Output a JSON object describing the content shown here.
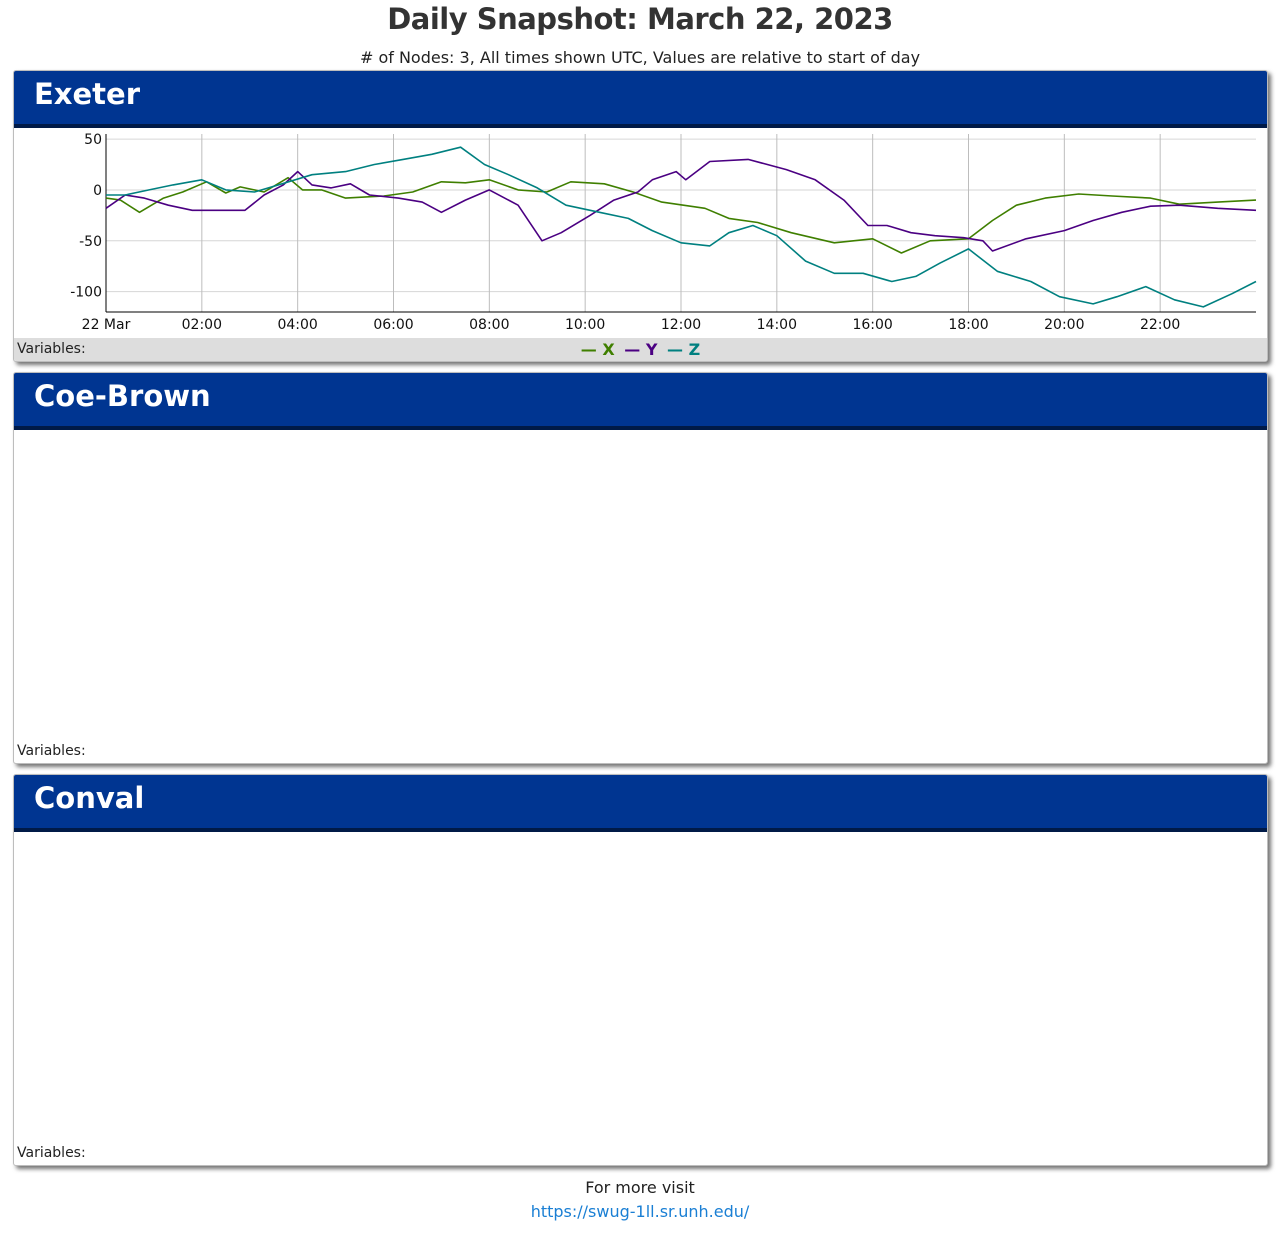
{
  "page": {
    "title": "Daily Snapshot: March 22, 2023",
    "subtitle": "# of Nodes: 3, All times shown UTC, Values are relative to start of day"
  },
  "panels": [
    {
      "name": "Exeter",
      "variables_label": "Variables:"
    },
    {
      "name": "Coe-Brown",
      "variables_label": "Variables:"
    },
    {
      "name": "Conval",
      "variables_label": "Variables:"
    }
  ],
  "legend": [
    {
      "label": "X",
      "color": "#3f7f00"
    },
    {
      "label": "Y",
      "color": "#4b0082"
    },
    {
      "label": "Z",
      "color": "#008080"
    }
  ],
  "footer": {
    "text": "For more visit",
    "link": "https://swug-1ll.sr.unh.edu/"
  },
  "chart_data": {
    "type": "line",
    "x_unit": "hours UTC",
    "xlim": [
      0,
      24
    ],
    "ylim": [
      -120,
      55
    ],
    "y_ticks": [
      50,
      0,
      -50,
      -100
    ],
    "x_ticks": [
      {
        "hour": 0,
        "label": "22 Mar"
      },
      {
        "hour": 2,
        "label": "02:00"
      },
      {
        "hour": 4,
        "label": "04:00"
      },
      {
        "hour": 6,
        "label": "06:00"
      },
      {
        "hour": 8,
        "label": "08:00"
      },
      {
        "hour": 10,
        "label": "10:00"
      },
      {
        "hour": 12,
        "label": "12:00"
      },
      {
        "hour": 14,
        "label": "14:00"
      },
      {
        "hour": 16,
        "label": "16:00"
      },
      {
        "hour": 18,
        "label": "18:00"
      },
      {
        "hour": 20,
        "label": "20:00"
      },
      {
        "hour": 22,
        "label": "22:00"
      }
    ],
    "grid": true,
    "series": [
      {
        "name": "X",
        "color": "#3f7f00",
        "points": [
          [
            0,
            -8
          ],
          [
            0.3,
            -10
          ],
          [
            0.7,
            -22
          ],
          [
            1.2,
            -8
          ],
          [
            1.6,
            -2
          ],
          [
            2.1,
            8
          ],
          [
            2.5,
            -3
          ],
          [
            2.8,
            3
          ],
          [
            3.3,
            -2
          ],
          [
            3.8,
            12
          ],
          [
            4.1,
            0
          ],
          [
            4.5,
            0
          ],
          [
            5,
            -8
          ],
          [
            5.8,
            -6
          ],
          [
            6.4,
            -2
          ],
          [
            7,
            8
          ],
          [
            7.5,
            7
          ],
          [
            8,
            10
          ],
          [
            8.6,
            0
          ],
          [
            9.2,
            -2
          ],
          [
            9.7,
            8
          ],
          [
            10.4,
            6
          ],
          [
            11,
            -2
          ],
          [
            11.6,
            -12
          ],
          [
            12.5,
            -18
          ],
          [
            13,
            -28
          ],
          [
            13.6,
            -32
          ],
          [
            14.3,
            -42
          ],
          [
            15.2,
            -52
          ],
          [
            16,
            -48
          ],
          [
            16.6,
            -62
          ],
          [
            17.2,
            -50
          ],
          [
            18,
            -48
          ],
          [
            18.5,
            -30
          ],
          [
            19,
            -15
          ],
          [
            19.6,
            -8
          ],
          [
            20.3,
            -4
          ],
          [
            21,
            -6
          ],
          [
            21.8,
            -8
          ],
          [
            22.4,
            -14
          ],
          [
            23.2,
            -12
          ],
          [
            24,
            -10
          ]
        ]
      },
      {
        "name": "Y",
        "color": "#4b0082",
        "points": [
          [
            0,
            -18
          ],
          [
            0.4,
            -5
          ],
          [
            0.8,
            -8
          ],
          [
            1.3,
            -15
          ],
          [
            1.8,
            -20
          ],
          [
            2.4,
            -20
          ],
          [
            2.9,
            -20
          ],
          [
            3.3,
            -5
          ],
          [
            3.7,
            5
          ],
          [
            4,
            18
          ],
          [
            4.3,
            5
          ],
          [
            4.7,
            2
          ],
          [
            5.1,
            6
          ],
          [
            5.5,
            -5
          ],
          [
            6.1,
            -8
          ],
          [
            6.6,
            -12
          ],
          [
            7,
            -22
          ],
          [
            7.5,
            -10
          ],
          [
            8,
            0
          ],
          [
            8.6,
            -15
          ],
          [
            9.1,
            -50
          ],
          [
            9.5,
            -42
          ],
          [
            10.1,
            -25
          ],
          [
            10.6,
            -10
          ],
          [
            11.1,
            -2
          ],
          [
            11.4,
            10
          ],
          [
            11.9,
            18
          ],
          [
            12.1,
            10
          ],
          [
            12.6,
            28
          ],
          [
            13.4,
            30
          ],
          [
            14.2,
            20
          ],
          [
            14.8,
            10
          ],
          [
            15.4,
            -10
          ],
          [
            15.9,
            -35
          ],
          [
            16.3,
            -35
          ],
          [
            16.8,
            -42
          ],
          [
            17.3,
            -45
          ],
          [
            17.9,
            -47
          ],
          [
            18.3,
            -50
          ],
          [
            18.5,
            -60
          ],
          [
            19.2,
            -48
          ],
          [
            20,
            -40
          ],
          [
            20.6,
            -30
          ],
          [
            21.2,
            -22
          ],
          [
            21.8,
            -16
          ],
          [
            22.4,
            -15
          ],
          [
            23.2,
            -18
          ],
          [
            24,
            -20
          ]
        ]
      },
      {
        "name": "Z",
        "color": "#008080",
        "points": [
          [
            0,
            -5
          ],
          [
            0.4,
            -5
          ],
          [
            0.9,
            0
          ],
          [
            1.4,
            5
          ],
          [
            2,
            10
          ],
          [
            2.5,
            0
          ],
          [
            3.1,
            -2
          ],
          [
            3.6,
            5
          ],
          [
            4.3,
            15
          ],
          [
            5,
            18
          ],
          [
            5.6,
            25
          ],
          [
            6.2,
            30
          ],
          [
            6.8,
            35
          ],
          [
            7.4,
            42
          ],
          [
            7.9,
            25
          ],
          [
            8.4,
            15
          ],
          [
            9,
            2
          ],
          [
            9.6,
            -15
          ],
          [
            10.3,
            -22
          ],
          [
            10.9,
            -28
          ],
          [
            11.4,
            -40
          ],
          [
            12,
            -52
          ],
          [
            12.6,
            -55
          ],
          [
            13,
            -42
          ],
          [
            13.5,
            -35
          ],
          [
            14,
            -45
          ],
          [
            14.6,
            -70
          ],
          [
            15.2,
            -82
          ],
          [
            15.8,
            -82
          ],
          [
            16.4,
            -90
          ],
          [
            16.9,
            -85
          ],
          [
            17.4,
            -72
          ],
          [
            18,
            -58
          ],
          [
            18.6,
            -80
          ],
          [
            19.3,
            -90
          ],
          [
            19.9,
            -105
          ],
          [
            20.6,
            -112
          ],
          [
            21.1,
            -105
          ],
          [
            21.7,
            -95
          ],
          [
            22.3,
            -108
          ],
          [
            22.9,
            -115
          ],
          [
            23.5,
            -102
          ],
          [
            24,
            -90
          ]
        ]
      }
    ]
  }
}
